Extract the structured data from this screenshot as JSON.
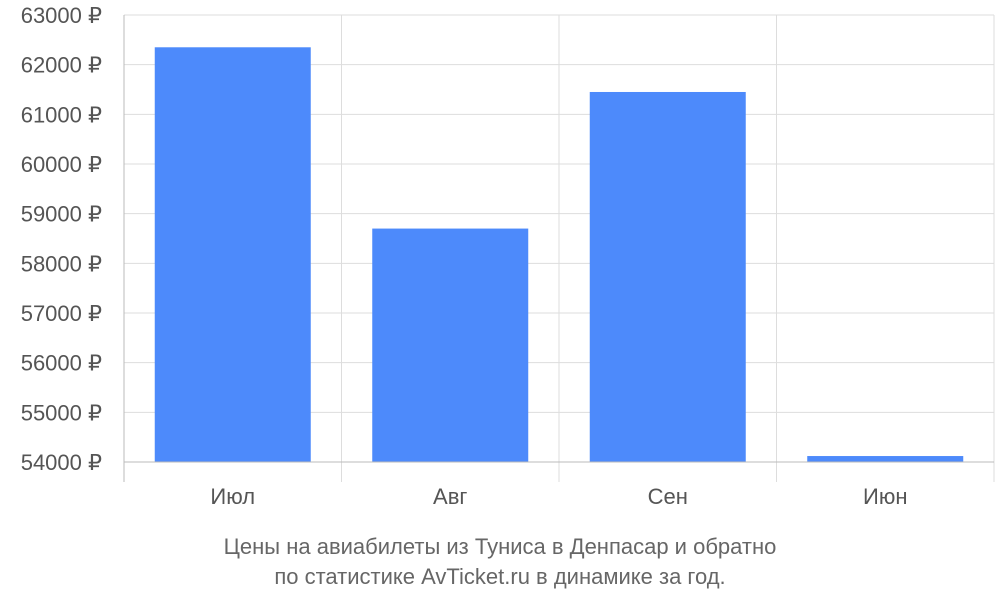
{
  "chart_data": {
    "type": "bar",
    "categories": [
      "Июл",
      "Авг",
      "Сен",
      "Июн"
    ],
    "values": [
      62350,
      58700,
      61450,
      54120
    ],
    "y_ticks": [
      "54000 ₽",
      "55000 ₽",
      "56000 ₽",
      "57000 ₽",
      "58000 ₽",
      "59000 ₽",
      "60000 ₽",
      "61000 ₽",
      "62000 ₽",
      "63000 ₽"
    ],
    "ylim": [
      54000,
      63000
    ],
    "grid": true,
    "bar_color": "#4d8afb",
    "caption_line1": "Цены на авиабилеты из Туниса в Денпасар и обратно",
    "caption_line2": "по статистике AvTicket.ru в динамике за год."
  }
}
